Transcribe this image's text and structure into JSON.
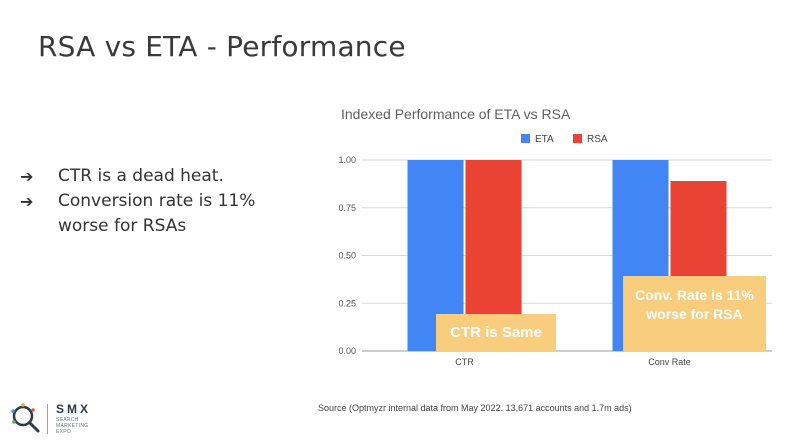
{
  "slide": {
    "title": "RSA vs ETA - Performance",
    "bullets": [
      "CTR is a dead heat.",
      "Conversion rate is 11% worse for RSAs"
    ],
    "bullet_arrow": "➔",
    "source": "Source (Optmyzr internal data from May 2022. 13,671 accounts and 1.7m ads)"
  },
  "logo": {
    "word": "SMX",
    "tagline": "SEARCH MARKETING EXPO",
    "icon": "magnifier-icon"
  },
  "callouts": {
    "ctr": "CTR is Same",
    "conv": "Conv. Rate is 11% worse for RSA"
  },
  "chart_data": {
    "type": "bar",
    "title": "Indexed Performance of ETA vs RSA",
    "categories": [
      "CTR",
      "Conv Rate"
    ],
    "series": [
      {
        "name": "ETA",
        "values": [
          1.0,
          1.0
        ],
        "color": "#4285f4"
      },
      {
        "name": "RSA",
        "values": [
          1.0,
          0.89
        ],
        "color": "#ea4335"
      }
    ],
    "ylim": [
      0,
      1.0
    ],
    "yticks": [
      "0.00",
      "0.25",
      "0.50",
      "0.75",
      "1.00"
    ],
    "xlabel": "",
    "ylabel": "",
    "grid": true,
    "legend": "top"
  }
}
